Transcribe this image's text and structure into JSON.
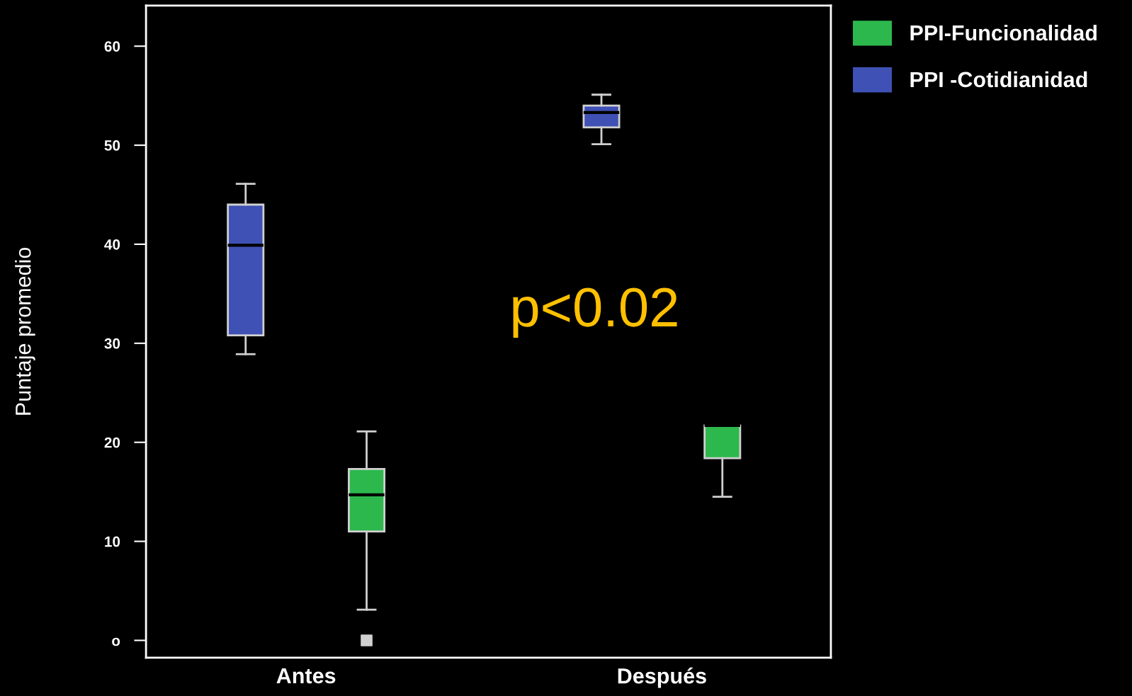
{
  "chart_data": {
    "type": "box",
    "ylabel": "Puntaje promedio",
    "categories": [
      "Antes",
      "Después"
    ],
    "series": [
      {
        "name": "PPI -Cotidianidad",
        "color": "#3f51b5",
        "boxes": [
          {
            "low": 28.9,
            "q1": 30.8,
            "median": 39.9,
            "q3": 44.0,
            "high": 46.1
          },
          {
            "low": 50.1,
            "q1": 51.8,
            "median": 53.3,
            "q3": 54.0,
            "high": 55.1
          }
        ]
      },
      {
        "name": "PPI-Funcionalidad",
        "color": "#2db84d",
        "boxes": [
          {
            "low": 3.1,
            "q1": 11.0,
            "median": 14.7,
            "q3": 17.3,
            "high": 21.1,
            "outliers": [
              0
            ]
          },
          {
            "low": 14.5,
            "q1": 18.4,
            "median": 21.7,
            "q3": 21.7,
            "high": 21.7
          }
        ]
      }
    ],
    "ylim": [
      -1.75,
      64.1
    ],
    "yticks": [
      {
        "value": 0,
        "label": "o"
      },
      10,
      20,
      30,
      40,
      50,
      60
    ],
    "annotations": [
      "p<0.02"
    ],
    "legend": "top right",
    "grid": false
  }
}
